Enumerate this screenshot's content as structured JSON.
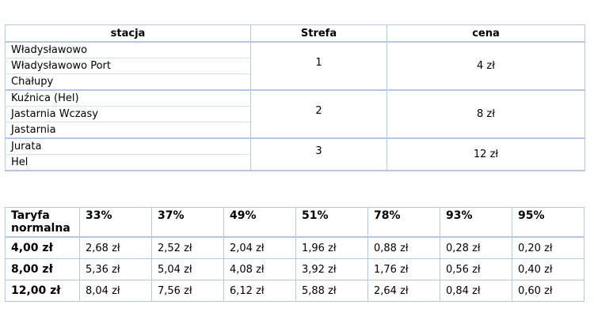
{
  "zones_table": {
    "headers": {
      "station": "stacja",
      "zone": "Strefa",
      "price": "cena"
    },
    "groups": [
      {
        "stations": [
          "Władysławowo",
          "Władysławowo Port",
          "Chałupy"
        ],
        "zone": "1",
        "price": "4 zł"
      },
      {
        "stations": [
          "Kuźnica (Hel)",
          "Jastarnia Wczasy",
          "Jastarnia"
        ],
        "zone": "2",
        "price": "8 zł"
      },
      {
        "stations": [
          "Jurata",
          "Hel"
        ],
        "zone": "3",
        "price": "12 zł"
      }
    ]
  },
  "discount_table": {
    "header_label": "Taryfa normalna",
    "discounts": [
      "33%",
      "37%",
      "49%",
      "51%",
      "78%",
      "93%",
      "95%"
    ],
    "rows": [
      {
        "fare": "4,00 zł",
        "values": [
          "2,68 zł",
          "2,52 zł",
          "2,04 zł",
          "1,96 zł",
          "0,88 zł",
          "0,28 zł",
          "0,20 zł"
        ]
      },
      {
        "fare": "8,00 zł",
        "values": [
          "5,36 zł",
          "5,04 zł",
          "4,08 zł",
          "3,92 zł",
          "1,76 zł",
          "0,56 zł",
          "0,40 zł"
        ]
      },
      {
        "fare": "12,00 zł",
        "values": [
          "8,04 zł",
          "7,56 zł",
          "6,12 zł",
          "5,88 zł",
          "2,64 zł",
          "0,84 zł",
          "0,60 zł"
        ]
      }
    ]
  },
  "colors": {
    "border": "#b4c7e7",
    "inner_border": "#d6e0f2"
  }
}
